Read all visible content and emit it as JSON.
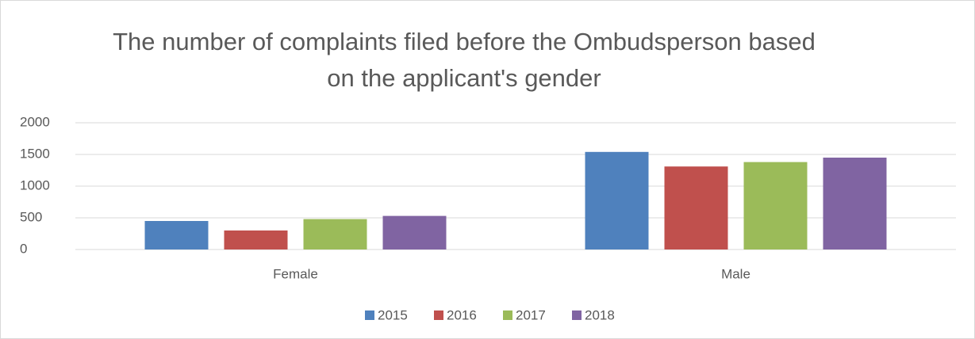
{
  "chart_data": {
    "type": "bar",
    "title": "The number of complaints filed before the Ombudsperson based on the applicant's gender",
    "categories": [
      "Female",
      "Male"
    ],
    "series": [
      {
        "name": "2015",
        "color": "#4f81bd",
        "values": [
          450,
          1540
        ]
      },
      {
        "name": "2016",
        "color": "#c0504d",
        "values": [
          300,
          1310
        ]
      },
      {
        "name": "2017",
        "color": "#9bbb59",
        "values": [
          480,
          1380
        ]
      },
      {
        "name": "2018",
        "color": "#8064a2",
        "values": [
          530,
          1450
        ]
      }
    ],
    "ylim": [
      0,
      2000
    ],
    "yticks": [
      0,
      500,
      1000,
      1500,
      2000
    ],
    "grid": true,
    "legend": "bottom"
  }
}
